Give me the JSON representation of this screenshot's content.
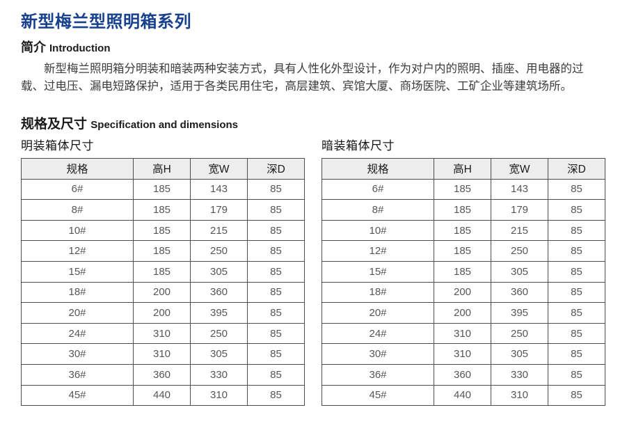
{
  "page_title": "新型梅兰型照明箱系列",
  "intro": {
    "heading_zh": "简介",
    "heading_en": "Introduction",
    "lines": [
      "新型梅兰照明箱分明装和暗装两种安装方式，具有人性化外型设计，作为对户内的照明、插座、用电器的过",
      "载、过电压、漏电短路保护，适用于各类民用住宅，高层建筑、宾馆大厦、商场医院、工矿企业等建筑场所。"
    ]
  },
  "spec_section": {
    "heading_zh": "规格及尺寸",
    "heading_en": "Specification and dimensions"
  },
  "tables": [
    {
      "title": "明装箱体尺寸",
      "headers": [
        "规格",
        "高H",
        "宽W",
        "深D"
      ],
      "rows": [
        [
          "6#",
          "185",
          "143",
          "85"
        ],
        [
          "8#",
          "185",
          "179",
          "85"
        ],
        [
          "10#",
          "185",
          "215",
          "85"
        ],
        [
          "12#",
          "185",
          "250",
          "85"
        ],
        [
          "15#",
          "185",
          "305",
          "85"
        ],
        [
          "18#",
          "200",
          "360",
          "85"
        ],
        [
          "20#",
          "200",
          "395",
          "85"
        ],
        [
          "24#",
          "310",
          "250",
          "85"
        ],
        [
          "30#",
          "310",
          "305",
          "85"
        ],
        [
          "36#",
          "360",
          "330",
          "85"
        ],
        [
          "45#",
          "440",
          "310",
          "85"
        ]
      ]
    },
    {
      "title": "暗装箱体尺寸",
      "headers": [
        "规格",
        "高H",
        "宽W",
        "深D"
      ],
      "rows": [
        [
          "6#",
          "185",
          "143",
          "85"
        ],
        [
          "8#",
          "185",
          "179",
          "85"
        ],
        [
          "10#",
          "185",
          "215",
          "85"
        ],
        [
          "12#",
          "185",
          "250",
          "85"
        ],
        [
          "15#",
          "185",
          "305",
          "85"
        ],
        [
          "18#",
          "200",
          "360",
          "85"
        ],
        [
          "20#",
          "200",
          "395",
          "85"
        ],
        [
          "24#",
          "310",
          "250",
          "85"
        ],
        [
          "30#",
          "310",
          "305",
          "85"
        ],
        [
          "36#",
          "360",
          "330",
          "85"
        ],
        [
          "45#",
          "440",
          "310",
          "85"
        ]
      ]
    }
  ],
  "colors": {
    "title_blue": "#17418f",
    "header_row_bg": "#ededed",
    "table_border": "#4d4d4d",
    "body_text": "#3c3c3c",
    "cell_text": "#565656"
  }
}
